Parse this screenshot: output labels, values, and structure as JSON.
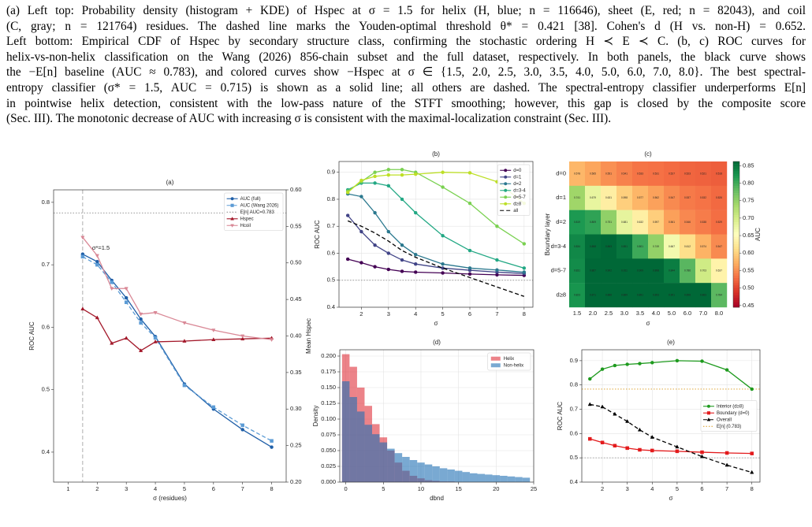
{
  "caption": [
    "(a) Left top: Probability density (histogram + KDE) of Hspec at σ = 1.5 for helix (H, blue; n = 116646), sheet (E, red; n = 82043), and coil",
    "(C, gray; n = 121764) residues. The dashed line marks the Youden-optimal threshold θ* = 0.421 [38]. Cohen's d (H vs. non-H) = 0.652.",
    "Left bottom: Empirical CDF of Hspec by secondary structure class, confirming the stochastic ordering H ≺ E ≺ C. (b, c) ROC curves for",
    "helix-vs-non-helix classification on the Wang (2026) 856-chain subset and the full dataset, respectively. In both panels, the black curve shows",
    "the −E[n] baseline (AUC ≈ 0.783), and colored curves show −Hspec at σ ∈ {1.5, 2.0, 2.5, 3.0, 3.5, 4.0, 5.0, 6.0, 7.0, 8.0}. The best spectral-",
    "entropy classifier (σ* = 1.5, AUC = 0.715) is shown as a solid line; all others are dashed. The spectral-entropy classifier underperforms E[n]",
    "in pointwise helix detection, consistent with the low-pass nature of the STFT smoothing; however, this gap is closed by the composite score",
    "(Sec. III). The monotonic decrease of AUC with increasing σ is consistent with the maximal-localization constraint (Sec. III)."
  ],
  "chart_data": [
    {
      "type": "line",
      "title": "(a)",
      "xlabel": "σ (residues)",
      "ylabel": "ROC AUC",
      "y2label": "Mean Hspec",
      "x": [
        1.5,
        2,
        2.5,
        3,
        3.5,
        4,
        5,
        6,
        7,
        8
      ],
      "xlim": [
        0.5,
        8.5
      ],
      "xticks": [
        1,
        2,
        3,
        4,
        5,
        6,
        7,
        8
      ],
      "ylim": [
        0.352,
        0.82
      ],
      "yticks": [
        0.4,
        0.5,
        0.6,
        0.7,
        0.8
      ],
      "y2lim": [
        0.2,
        0.6
      ],
      "y2ticks": [
        {
          "value": 0.2,
          "label": "0.20"
        },
        0.25,
        {
          "value": 0.3,
          "label": "0.30"
        },
        0.35,
        {
          "value": 0.4,
          "label": "0.40"
        },
        0.45,
        {
          "value": 0.5,
          "label": "0.50"
        },
        0.55,
        {
          "value": 0.6,
          "label": "0.60"
        }
      ],
      "grid": false,
      "legend": "upper right",
      "series": [
        {
          "name": "AUC (full)",
          "color": "#1f5fa8",
          "style": "solid",
          "marker": "o",
          "values": [
            0.717,
            0.705,
            0.675,
            0.647,
            0.613,
            0.585,
            0.509,
            0.469,
            0.436,
            0.408
          ]
        },
        {
          "name": "AUC (Wang 2026)",
          "color": "#5b9bd5",
          "style": "dashed",
          "marker": "s",
          "values": [
            0.713,
            0.7,
            0.672,
            0.64,
            0.607,
            0.583,
            0.507,
            0.472,
            0.443,
            0.418
          ]
        },
        {
          "name": "Hspec",
          "color": "#a3182a",
          "style": "solid",
          "marker": "^",
          "axis": "y2",
          "values": [
            0.437,
            0.425,
            0.39,
            0.397,
            0.38,
            0.392,
            0.393,
            0.395,
            0.396,
            0.397
          ]
        },
        {
          "name": "Hcoil",
          "color": "#d98896",
          "style": "solid",
          "marker": "v",
          "axis": "y2",
          "values": [
            0.535,
            0.51,
            0.465,
            0.465,
            0.43,
            0.432,
            0.418,
            0.408,
            0.4,
            0.395
          ]
        }
      ],
      "reference_lines": [
        {
          "name": "E[n] AUC=0.783",
          "value": 0.783,
          "color": "#888888",
          "style": "dotted"
        }
      ],
      "vlines": [
        {
          "value": 1.5,
          "color": "#999999",
          "style": "dashed",
          "label": "σ*=1.5"
        }
      ]
    },
    {
      "type": "line",
      "title": "(b)",
      "xlabel": "σ",
      "ylabel": "ROC AUC",
      "x": [
        1.5,
        2,
        2.5,
        3,
        3.5,
        4,
        5,
        6,
        7,
        8
      ],
      "xlim": [
        1.175,
        8.325
      ],
      "xticks": [
        2,
        3,
        4,
        5,
        6,
        7,
        8
      ],
      "ylim": [
        0.4,
        0.94
      ],
      "yticks": [
        0.4,
        0.5,
        0.6,
        0.7,
        0.8,
        0.9
      ],
      "grid": true,
      "legend": "upper right",
      "series": [
        {
          "name": "d=0",
          "color": "#440154",
          "style": "solid",
          "marker": "o",
          "values": [
            0.578,
            0.565,
            0.55,
            0.54,
            0.533,
            0.53,
            0.527,
            0.523,
            0.52,
            0.518
          ]
        },
        {
          "name": "d=1",
          "color": "#414487",
          "style": "solid",
          "marker": "o",
          "values": [
            0.74,
            0.68,
            0.63,
            0.6,
            0.575,
            0.56,
            0.545,
            0.537,
            0.53,
            0.525
          ]
        },
        {
          "name": "d=2",
          "color": "#2a788e",
          "style": "solid",
          "marker": "o",
          "values": [
            0.82,
            0.81,
            0.75,
            0.68,
            0.63,
            0.595,
            0.56,
            0.545,
            0.538,
            0.53
          ]
        },
        {
          "name": "d=3-4",
          "color": "#22a884",
          "style": "solid",
          "marker": "o",
          "values": [
            0.835,
            0.86,
            0.86,
            0.85,
            0.8,
            0.75,
            0.665,
            0.61,
            0.575,
            0.545
          ]
        },
        {
          "name": "d=5-7",
          "color": "#7ad151",
          "style": "solid",
          "marker": "o",
          "values": [
            0.83,
            0.865,
            0.9,
            0.91,
            0.91,
            0.9,
            0.845,
            0.785,
            0.7,
            0.635
          ]
        },
        {
          "name": "d≥8",
          "color": "#bddf26",
          "style": "solid",
          "marker": "o",
          "values": [
            0.825,
            0.87,
            0.885,
            0.89,
            0.89,
            0.893,
            0.9,
            0.898,
            0.865,
            0.785
          ]
        },
        {
          "name": "all",
          "color": "#000000",
          "style": "dashed",
          "marker": "none",
          "values": [
            0.72,
            0.7,
            0.675,
            0.645,
            0.61,
            0.585,
            0.545,
            0.51,
            0.475,
            0.44
          ]
        }
      ],
      "reference_lines": [
        {
          "value": 0.5,
          "color": "#999999",
          "style": "dotted"
        }
      ]
    },
    {
      "type": "heatmap",
      "title": "(c)",
      "xlabel": "σ",
      "ylabel": "Boundary layer",
      "colorbar_label": "AUC",
      "colormap": "RdYlGn",
      "vlim": [
        0.445,
        0.862
      ],
      "cticks": [
        0.45,
        {
          "value": 0.5,
          "label": "0.50"
        },
        0.55,
        {
          "value": 0.6,
          "label": "0.60"
        },
        0.65,
        {
          "value": 0.7,
          "label": "0.70"
        },
        0.75,
        {
          "value": 0.8,
          "label": "0.80"
        },
        0.85
      ],
      "categories": [
        "1.5",
        "2.0",
        "2.5",
        "3.0",
        "3.5",
        "4.0",
        "5.0",
        "6.0",
        "7.0",
        "8.0"
      ],
      "rows": [
        "d=0",
        "d=1",
        "d=2",
        "d=3-4",
        "d=5-7",
        "d≥8"
      ],
      "values": [
        [
          0.578,
          0.565,
          0.551,
          0.541,
          0.533,
          0.531,
          0.527,
          0.523,
          0.521,
          0.518
        ],
        [
          0.741,
          0.679,
          0.631,
          0.598,
          0.577,
          0.562,
          0.547,
          0.537,
          0.532,
          0.526
        ],
        [
          0.819,
          0.809,
          0.751,
          0.681,
          0.632,
          0.597,
          0.561,
          0.546,
          0.538,
          0.529
        ],
        [
          0.834,
          0.858,
          0.863,
          0.851,
          0.801,
          0.749,
          0.667,
          0.612,
          0.574,
          0.547
        ],
        [
          0.831,
          0.867,
          0.902,
          0.911,
          0.909,
          0.898,
          0.844,
          0.786,
          0.703,
          0.637
        ],
        [
          0.823,
          0.871,
          0.886,
          0.889,
          0.891,
          0.893,
          0.901,
          0.898,
          0.863,
          0.784
        ]
      ]
    },
    {
      "type": "histogram",
      "title": "(d)",
      "xlabel": "dbnd",
      "ylabel": "Density",
      "bins": [
        -0.5,
        0.5,
        1.5,
        2.5,
        3.5,
        4.5,
        5.5,
        6.5,
        7.5,
        8.5,
        9.5,
        10.5,
        11.5,
        12.5,
        13.5,
        14.5,
        15.5,
        16.5,
        17.5,
        18.5,
        19.5,
        20.5,
        21.5,
        22.5,
        23.5,
        24.5
      ],
      "xlim": [
        -0.8,
        25
      ],
      "xticks": [
        0,
        5,
        10,
        15,
        20,
        25
      ],
      "ylim": [
        0,
        0.21
      ],
      "yticks": [
        {
          "value": 0,
          "label": "0.000"
        },
        {
          "value": 0.025,
          "label": "0.025"
        },
        {
          "value": 0.05,
          "label": "0.050"
        },
        {
          "value": 0.075,
          "label": "0.075"
        },
        {
          "value": 0.1,
          "label": "0.100"
        },
        {
          "value": 0.125,
          "label": "0.125"
        },
        {
          "value": 0.15,
          "label": "0.150"
        },
        {
          "value": 0.175,
          "label": "0.175"
        },
        {
          "value": 0.2,
          "label": "0.200"
        }
      ],
      "grid": true,
      "legend": "upper right",
      "alpha": 0.6,
      "series": [
        {
          "name": "Helix",
          "color": "#e0303a",
          "values": [
            0.203,
            0.183,
            0.15,
            0.121,
            0.092,
            0.071,
            0.05,
            0.031,
            0.018,
            0.01,
            0.006,
            0.003,
            0.002,
            0.001,
            0.001,
            0,
            0,
            0,
            0,
            0,
            0,
            0,
            0,
            0,
            0
          ]
        },
        {
          "name": "Non-helix",
          "color": "#1f6fb4",
          "values": [
            0.16,
            0.135,
            0.112,
            0.091,
            0.076,
            0.063,
            0.053,
            0.046,
            0.04,
            0.035,
            0.031,
            0.028,
            0.025,
            0.022,
            0.02,
            0.018,
            0.016,
            0.014,
            0.013,
            0.012,
            0.011,
            0.01,
            0.009,
            0.008,
            0.007
          ]
        }
      ]
    },
    {
      "type": "line",
      "title": "(e)",
      "xlabel": "σ",
      "ylabel": "ROC AUC",
      "x": [
        1.5,
        2,
        2.5,
        3,
        3.5,
        4,
        5,
        6,
        7,
        8
      ],
      "xlim": [
        1.175,
        8.325
      ],
      "xticks": [
        2,
        3,
        4,
        5,
        6,
        7,
        8
      ],
      "ylim": [
        0.4,
        0.945
      ],
      "yticks": [
        0.4,
        0.5,
        0.6,
        0.7,
        0.8,
        0.9
      ],
      "grid": true,
      "legend": "center right",
      "series": [
        {
          "name": "Interior (d≥8)",
          "color": "#1e9a1e",
          "style": "solid",
          "marker": "o",
          "values": [
            0.825,
            0.865,
            0.88,
            0.885,
            0.888,
            0.892,
            0.9,
            0.898,
            0.862,
            0.783
          ]
        },
        {
          "name": "Boundary (d=0)",
          "color": "#e31a1c",
          "style": "solid",
          "marker": "s",
          "values": [
            0.578,
            0.563,
            0.55,
            0.54,
            0.533,
            0.53,
            0.527,
            0.523,
            0.52,
            0.518
          ]
        },
        {
          "name": "Overall",
          "color": "#000000",
          "style": "dashed",
          "marker": "^",
          "values": [
            0.72,
            0.71,
            0.68,
            0.65,
            0.615,
            0.585,
            0.545,
            0.505,
            0.47,
            0.44
          ]
        }
      ],
      "reference_lines": [
        {
          "name": "E[n] (0.783)",
          "value": 0.783,
          "color": "#d99a1e",
          "style": "dotted"
        },
        {
          "value": 0.5,
          "color": "#999999",
          "style": "dotted"
        }
      ]
    }
  ]
}
